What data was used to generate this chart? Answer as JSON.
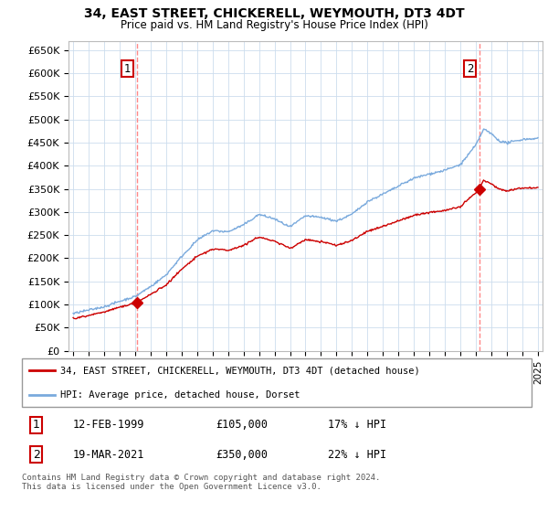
{
  "title": "34, EAST STREET, CHICKERELL, WEYMOUTH, DT3 4DT",
  "subtitle": "Price paid vs. HM Land Registry's House Price Index (HPI)",
  "background_color": "#ffffff",
  "plot_bg_color": "#ffffff",
  "grid_color": "#ccddee",
  "sale1_date_num": 1999.12,
  "sale1_price": 105000,
  "sale2_date_num": 2021.21,
  "sale2_price": 350000,
  "sale1_date_str": "12-FEB-1999",
  "sale1_price_str": "£105,000",
  "sale1_pct": "17% ↓ HPI",
  "sale2_date_str": "19-MAR-2021",
  "sale2_price_str": "£350,000",
  "sale2_pct": "22% ↓ HPI",
  "hpi_color": "#7aaadd",
  "sale_color": "#cc0000",
  "vline_color": "#ff8888",
  "legend_label_sale": "34, EAST STREET, CHICKERELL, WEYMOUTH, DT3 4DT (detached house)",
  "legend_label_hpi": "HPI: Average price, detached house, Dorset",
  "footer": "Contains HM Land Registry data © Crown copyright and database right 2024.\nThis data is licensed under the Open Government Licence v3.0.",
  "ylim": [
    0,
    670000
  ],
  "xlim": [
    1994.7,
    2025.3
  ],
  "yticks": [
    0,
    50000,
    100000,
    150000,
    200000,
    250000,
    300000,
    350000,
    400000,
    450000,
    500000,
    550000,
    600000,
    650000
  ],
  "ytick_labels": [
    "£0",
    "£50K",
    "£100K",
    "£150K",
    "£200K",
    "£250K",
    "£300K",
    "£350K",
    "£400K",
    "£450K",
    "£500K",
    "£550K",
    "£600K",
    "£650K"
  ],
  "xticks": [
    1995,
    1996,
    1997,
    1998,
    1999,
    2000,
    2001,
    2002,
    2003,
    2004,
    2005,
    2006,
    2007,
    2008,
    2009,
    2010,
    2011,
    2012,
    2013,
    2014,
    2015,
    2016,
    2017,
    2018,
    2019,
    2020,
    2021,
    2022,
    2023,
    2024,
    2025
  ]
}
